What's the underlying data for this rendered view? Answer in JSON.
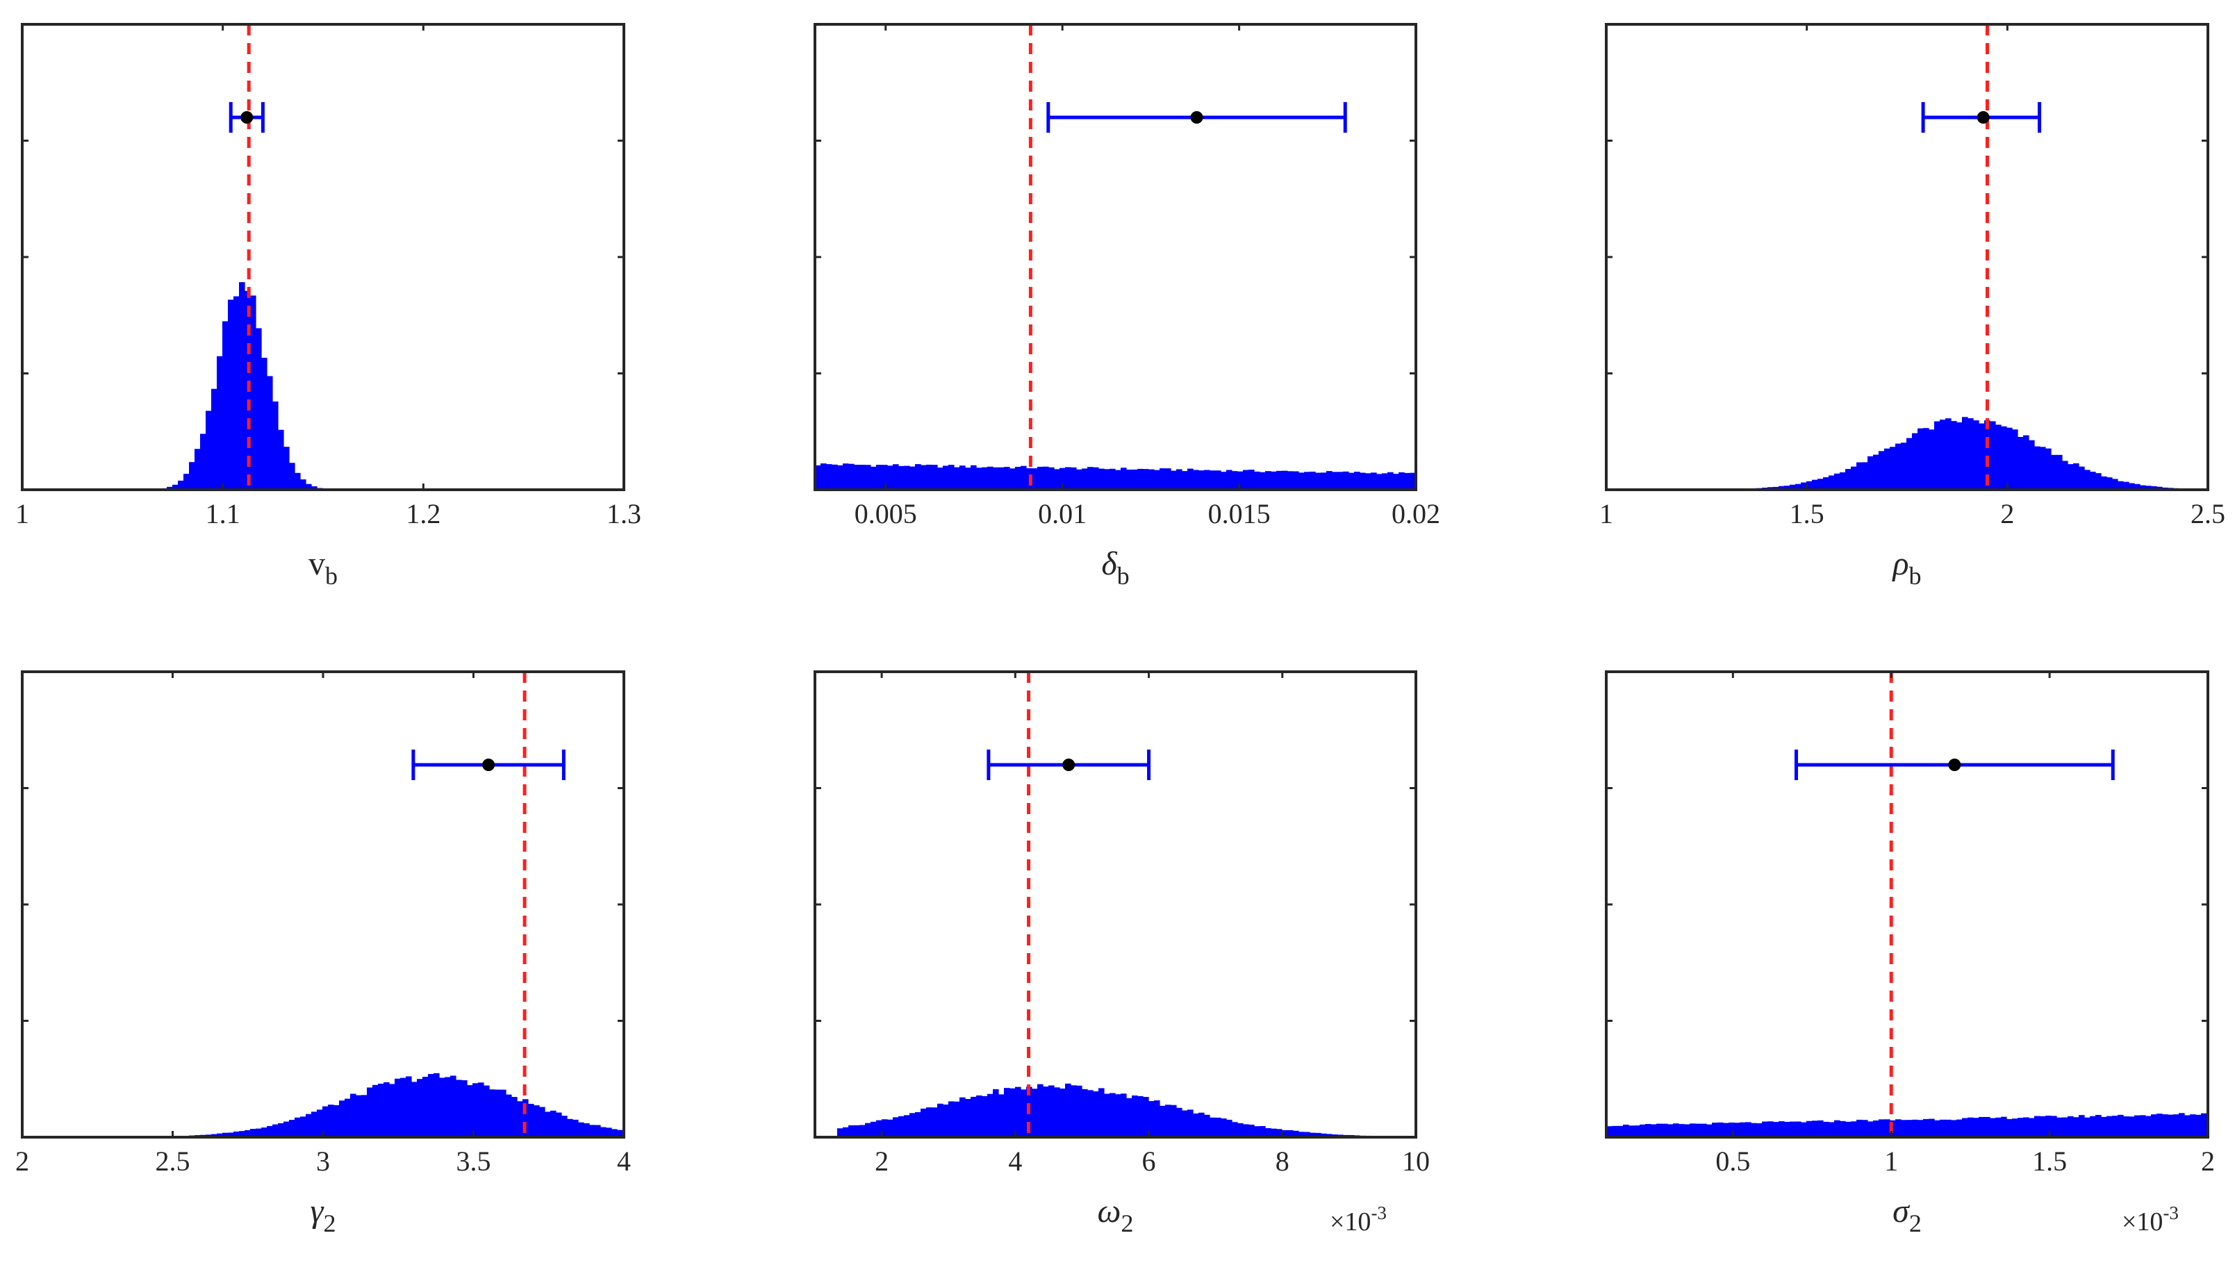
{
  "figure": {
    "colors": {
      "histogram": "#0000ff",
      "true_value_line": "#ff1f1f",
      "error_bar": "#0000ff",
      "estimate_marker": "#000000",
      "axes": "#262626"
    }
  },
  "chart_data": [
    {
      "type": "bar",
      "xlabel": "v",
      "xlabel_sub": "b",
      "xlabel_greek": false,
      "xlim": [
        1,
        1.3
      ],
      "xticks": [
        "1",
        "1.1",
        "1.2",
        "1.3"
      ],
      "exponent_label": "",
      "y_tick_labels_shown": false,
      "true_value": 1.113,
      "estimate": {
        "center": 1.112,
        "low": 1.104,
        "high": 1.12
      },
      "histogram_shape": "gaussian",
      "histogram": {
        "mean": 1.11,
        "sd": 0.0125,
        "start": 1.06,
        "end": 1.165,
        "peak_fraction": 0.43
      }
    },
    {
      "type": "bar",
      "xlabel": "δ",
      "xlabel_sub": "b",
      "xlabel_greek": true,
      "xlim": [
        0.003,
        0.02
      ],
      "xticks": [
        "0.005",
        "0.01",
        "0.015",
        "0.02"
      ],
      "exponent_label": "",
      "y_tick_labels_shown": false,
      "true_value": 0.0091,
      "estimate": {
        "center": 0.0138,
        "low": 0.0096,
        "high": 0.018
      },
      "histogram_shape": "linear",
      "histogram": {
        "start": 0.003,
        "end": 0.02,
        "start_fraction": 0.055,
        "end_fraction": 0.035
      }
    },
    {
      "type": "bar",
      "xlabel": "ρ",
      "xlabel_sub": "b",
      "xlabel_greek": true,
      "xlim": [
        1,
        2.5
      ],
      "xticks": [
        "1",
        "1.5",
        "2",
        "2.5"
      ],
      "exponent_label": "",
      "y_tick_labels_shown": false,
      "true_value": 1.95,
      "estimate": {
        "center": 1.94,
        "low": 1.79,
        "high": 2.08
      },
      "histogram_shape": "gaussian",
      "histogram": {
        "mean": 1.9,
        "sd": 0.19,
        "start": 1.3,
        "end": 2.45,
        "peak_fraction": 0.15
      }
    },
    {
      "type": "bar",
      "xlabel": "γ",
      "xlabel_sub": "2",
      "xlabel_greek": true,
      "xlim": [
        2,
        4
      ],
      "xticks": [
        "2",
        "2.5",
        "3",
        "3.5",
        "4"
      ],
      "exponent_label": "",
      "y_tick_labels_shown": false,
      "true_value": 3.67,
      "estimate": {
        "center": 3.55,
        "low": 3.3,
        "high": 3.8
      },
      "histogram_shape": "gaussian",
      "histogram": {
        "mean": 3.37,
        "sd": 0.3,
        "start": 2.5,
        "end": 4.0,
        "peak_fraction": 0.13
      }
    },
    {
      "type": "bar",
      "xlabel": "ω",
      "xlabel_sub": "2",
      "xlabel_greek": true,
      "xlim": [
        1,
        10
      ],
      "xticks": [
        "2",
        "4",
        "6",
        "8",
        "10"
      ],
      "exponent_label": "×10",
      "exponent_power": "-3",
      "y_tick_labels_shown": false,
      "true_value": 4.2,
      "estimate": {
        "center": 4.8,
        "low": 3.6,
        "high": 6.0
      },
      "histogram_shape": "gaussian",
      "histogram": {
        "mean": 4.6,
        "sd": 1.75,
        "start": 1.3,
        "end": 9.8,
        "peak_fraction": 0.11
      }
    },
    {
      "type": "bar",
      "xlabel": "σ",
      "xlabel_sub": "2",
      "xlabel_greek": true,
      "xlim": [
        0.1,
        2
      ],
      "xticks": [
        "0.5",
        "1",
        "1.5",
        "2"
      ],
      "exponent_label": "×10",
      "exponent_power": "-3",
      "y_tick_labels_shown": false,
      "true_value": 1.0,
      "estimate": {
        "center": 1.2,
        "low": 0.7,
        "high": 1.7
      },
      "histogram_shape": "linear",
      "histogram": {
        "start": 0.1,
        "end": 2.0,
        "start_fraction": 0.025,
        "end_fraction": 0.05
      }
    }
  ]
}
